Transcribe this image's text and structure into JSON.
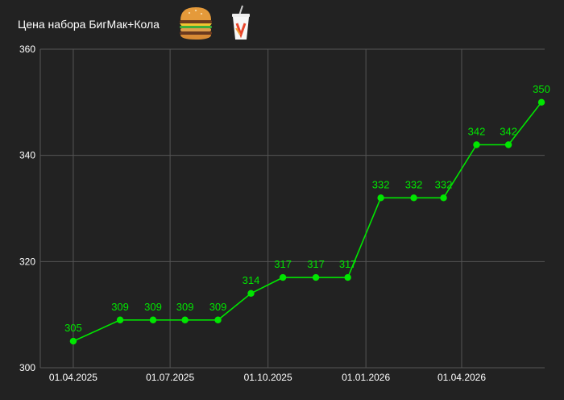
{
  "chart_data": {
    "type": "line",
    "title": "Цена набора БигМак+Кола",
    "icons": [
      "burger-icon",
      "cola-cup-icon"
    ],
    "x": [
      "01.04.2025",
      "15.05.2025",
      "15.06.2025",
      "15.07.2025",
      "15.08.2025",
      "15.09.2025",
      "15.10.2025",
      "15.11.2025",
      "15.12.2025",
      "15.01.2026",
      "15.02.2026",
      "15.03.2026",
      "15.04.2026",
      "15.05.2026",
      "15.06.2026"
    ],
    "x_ticks": [
      "01.04.2025",
      "01.07.2025",
      "01.10.2025",
      "01.01.2026",
      "01.04.2026"
    ],
    "series": [
      {
        "values": [
          305,
          309,
          309,
          309,
          309,
          314,
          317,
          317,
          317,
          332,
          332,
          332,
          342,
          342,
          350
        ],
        "color": "#00e600"
      }
    ],
    "ylim": [
      300,
      360
    ],
    "y_ticks": [
      300,
      320,
      340,
      360
    ],
    "xlabel": "",
    "ylabel": "",
    "grid": true,
    "colors": {
      "background": "#222222",
      "grid": "#555555",
      "text": "#ffffff",
      "line": "#00e600"
    }
  }
}
